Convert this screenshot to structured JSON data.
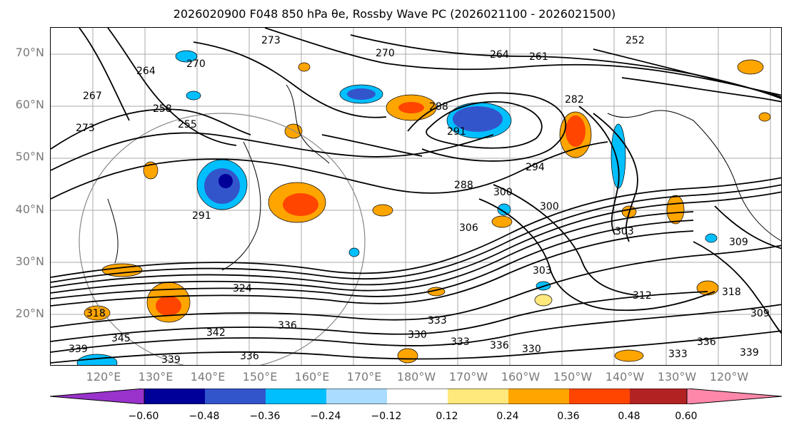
{
  "title": "2026020900 F048 850 hPa θe, Rossby Wave PC (2026021100 - 2026021500)",
  "lat_labels": [
    "70°N",
    "60°N",
    "50°N",
    "40°N",
    "30°N",
    "20°N"
  ],
  "lon_labels": [
    "120°E",
    "130°E",
    "140°E",
    "150°E",
    "160°E",
    "170°E",
    "180°W",
    "170°W",
    "160°W",
    "150°W",
    "140°W",
    "130°W",
    "120°W"
  ],
  "contour_labels": [
    "273",
    "270",
    "264",
    "261",
    "252",
    "264",
    "270",
    "267",
    "258",
    "255",
    "273",
    "288",
    "291",
    "282",
    "288",
    "294",
    "300",
    "300",
    "303",
    "291",
    "324",
    "306",
    "303",
    "312",
    "309",
    "318",
    "333",
    "330",
    "333",
    "336",
    "336",
    "339",
    "345",
    "342",
    "339",
    "336",
    "330",
    "339",
    "336",
    "333",
    "309",
    "318"
  ],
  "colorbar": {
    "ticks": [
      "−0.60",
      "−0.48",
      "−0.36",
      "−0.24",
      "−0.12",
      "0.12",
      "0.24",
      "0.36",
      "0.48",
      "0.60"
    ],
    "colors": [
      "#9933cc",
      "#000099",
      "#3355cc",
      "#00bfff",
      "#aadcff",
      "#ffffff",
      "#ffe87c",
      "#ffa500",
      "#ff4500",
      "#b22222",
      "#ff88aa"
    ]
  },
  "icons": [
    "map-frame",
    "colorbar"
  ]
}
